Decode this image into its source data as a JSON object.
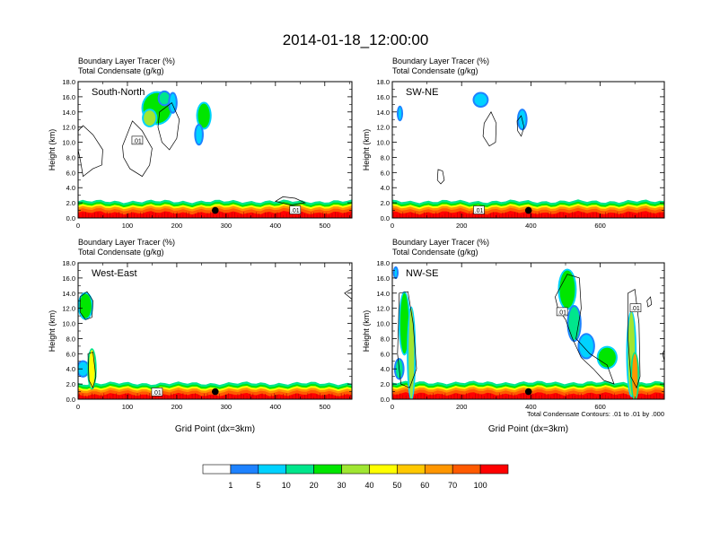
{
  "page_title": "2014-01-18_12:00:00",
  "footer_note": "Total Condensate Contours: .01 to .01 by .000",
  "colors": {
    "scale": [
      "#ffffff",
      "#1e82ff",
      "#00d2ff",
      "#00e68c",
      "#00e600",
      "#a0e632",
      "#ffff00",
      "#ffc800",
      "#ff9600",
      "#ff5a00",
      "#ff0000"
    ],
    "contour": "#000000",
    "ground": "#ff2800"
  },
  "chart_data": [
    {
      "type": "heatmap",
      "title_lines": [
        "Boundary Layer Tracer   (%)",
        "Total Condensate   (g/kg)"
      ],
      "panel_label": "South-North",
      "ylabel": "Height (km)",
      "xlabel": "",
      "xlim": [
        0,
        555
      ],
      "ylim": [
        0,
        18
      ],
      "xticks": [
        0,
        100,
        200,
        300,
        400,
        500
      ],
      "xtick_labels": [
        "0",
        "100",
        "200",
        "300",
        "400",
        "500"
      ],
      "yticks": [
        0,
        2,
        4,
        6,
        8,
        10,
        12,
        14,
        16,
        18
      ],
      "ytick_labels": [
        "0.0",
        "2.0",
        "4.0",
        "6.0",
        "8.0",
        "10.0",
        "12.0",
        "14.0",
        "16.0",
        "18.0"
      ],
      "marker": {
        "x": 278,
        "y": 1.0
      },
      "contour_labels": [
        {
          "text": ".01",
          "x": 120,
          "y": 10.2
        },
        {
          "text": ".01",
          "x": 440,
          "y": 1.0
        }
      ],
      "tracer_blobs": [
        {
          "x": 160,
          "y": 14.5,
          "rx": 28,
          "ry": 2.0,
          "v": 20
        },
        {
          "x": 145,
          "y": 13.2,
          "rx": 12,
          "ry": 1.0,
          "v": 30
        },
        {
          "x": 175,
          "y": 15.8,
          "rx": 10,
          "ry": 0.8,
          "v": 10
        },
        {
          "x": 255,
          "y": 13.5,
          "rx": 12,
          "ry": 1.6,
          "v": 20
        },
        {
          "x": 245,
          "y": 11.0,
          "rx": 6,
          "ry": 1.2,
          "v": 5
        },
        {
          "x": 192,
          "y": 15.2,
          "rx": 6,
          "ry": 1.2,
          "v": 5
        }
      ],
      "contours": [
        [
          [
            0,
            11.5
          ],
          [
            10,
            12.2
          ],
          [
            30,
            11.0
          ],
          [
            50,
            9.0
          ],
          [
            48,
            7.0
          ],
          [
            30,
            6.5
          ],
          [
            10,
            5.5
          ],
          [
            5,
            7.5
          ],
          [
            0,
            9.0
          ]
        ],
        [
          [
            90,
            9.5
          ],
          [
            110,
            12.8
          ],
          [
            130,
            11.5
          ],
          [
            150,
            9.2
          ],
          [
            145,
            7.0
          ],
          [
            130,
            5.5
          ],
          [
            105,
            6.5
          ],
          [
            92,
            8.0
          ]
        ],
        [
          [
            165,
            14.0
          ],
          [
            190,
            15.2
          ],
          [
            205,
            13.0
          ],
          [
            200,
            10.5
          ],
          [
            185,
            9.0
          ],
          [
            170,
            10.0
          ],
          [
            162,
            12.0
          ]
        ],
        [
          [
            400,
            2.2
          ],
          [
            415,
            2.8
          ],
          [
            440,
            2.6
          ],
          [
            460,
            2.0
          ],
          [
            430,
            1.7
          ]
        ]
      ],
      "pbl_height_km": 1.3
    },
    {
      "type": "heatmap",
      "title_lines": [
        "Boundary Layer Tracer   (%)",
        "Total Condensate   (g/kg)"
      ],
      "panel_label": "SW-NE",
      "ylabel": "Height (km)",
      "xlabel": "",
      "xlim": [
        0,
        785
      ],
      "ylim": [
        0,
        18
      ],
      "xticks": [
        0,
        200,
        400,
        600
      ],
      "xtick_labels": [
        "0",
        "200",
        "400",
        "600"
      ],
      "yticks": [
        0,
        2,
        4,
        6,
        8,
        10,
        12,
        14,
        16,
        18
      ],
      "ytick_labels": [
        "0.0",
        "2.0",
        "4.0",
        "6.0",
        "8.0",
        "10.0",
        "12.0",
        "14.0",
        "16.0",
        "18.0"
      ],
      "marker": {
        "x": 393,
        "y": 1.0
      },
      "contour_labels": [
        {
          "text": ".01",
          "x": 250,
          "y": 1.0
        }
      ],
      "tracer_blobs": [
        {
          "x": 255,
          "y": 15.6,
          "rx": 18,
          "ry": 0.8,
          "v": 5
        },
        {
          "x": 375,
          "y": 13.0,
          "rx": 10,
          "ry": 1.2,
          "v": 5
        },
        {
          "x": 22,
          "y": 13.8,
          "rx": 4,
          "ry": 0.8,
          "v": 5
        }
      ],
      "contours": [
        [
          [
            265,
            12.5
          ],
          [
            285,
            14.0
          ],
          [
            300,
            12.5
          ],
          [
            298,
            10.0
          ],
          [
            280,
            9.5
          ],
          [
            262,
            10.8
          ]
        ],
        [
          [
            132,
            6.4
          ],
          [
            145,
            6.2
          ],
          [
            150,
            5.0
          ],
          [
            140,
            4.5
          ],
          [
            130,
            5.0
          ]
        ],
        [
          [
            360,
            12.8
          ],
          [
            372,
            13.5
          ],
          [
            380,
            12.0
          ],
          [
            372,
            10.8
          ],
          [
            362,
            11.5
          ]
        ]
      ],
      "pbl_height_km": 1.3
    },
    {
      "type": "heatmap",
      "title_lines": [
        "Boundary Layer Tracer   (%)",
        "Total Condensate   (g/kg)"
      ],
      "panel_label": "West-East",
      "ylabel": "Height (km)",
      "xlabel": "Grid Point (dx=3km)",
      "xlim": [
        0,
        555
      ],
      "ylim": [
        0,
        18
      ],
      "xticks": [
        0,
        100,
        200,
        300,
        400,
        500
      ],
      "xtick_labels": [
        "0",
        "100",
        "200",
        "300",
        "400",
        "500"
      ],
      "yticks": [
        0,
        2,
        4,
        6,
        8,
        10,
        12,
        14,
        16,
        18
      ],
      "ytick_labels": [
        "0.0",
        "2.0",
        "4.0",
        "6.0",
        "8.0",
        "10.0",
        "12.0",
        "14.0",
        "16.0",
        "18.0"
      ],
      "marker": {
        "x": 278,
        "y": 1.0
      },
      "contour_labels": [
        {
          "text": ".01",
          "x": 160,
          "y": 0.9
        }
      ],
      "tracer_blobs": [
        {
          "x": 15,
          "y": 12.3,
          "rx": 12,
          "ry": 1.6,
          "v": 20
        },
        {
          "x": 10,
          "y": 4.0,
          "rx": 10,
          "ry": 0.9,
          "v": 5
        },
        {
          "x": 28,
          "y": 4.0,
          "rx": 6,
          "ry": 2.5,
          "v": 40
        }
      ],
      "contours": [
        [
          [
            4,
            13.5
          ],
          [
            18,
            14.2
          ],
          [
            30,
            13.0
          ],
          [
            28,
            10.8
          ],
          [
            15,
            10.5
          ],
          [
            4,
            11.5
          ]
        ],
        [
          [
            20,
            6.0
          ],
          [
            30,
            6.2
          ],
          [
            36,
            3.0
          ],
          [
            30,
            1.5
          ],
          [
            22,
            2.5
          ]
        ],
        [
          [
            540,
            14.0
          ],
          [
            555,
            14.6
          ],
          [
            555,
            13.2
          ]
        ]
      ],
      "pbl_height_km": 1.2
    },
    {
      "type": "heatmap",
      "title_lines": [
        "Boundary Layer Tracer   (%)",
        "Total Condensate   (g/kg)"
      ],
      "panel_label": "NW-SE",
      "ylabel": "Height (km)",
      "xlabel": "Grid Point (dx=3km)",
      "xlim": [
        0,
        785
      ],
      "ylim": [
        0,
        18
      ],
      "xticks": [
        0,
        200,
        400,
        600
      ],
      "xtick_labels": [
        "0",
        "200",
        "400",
        "600"
      ],
      "yticks": [
        0,
        2,
        4,
        6,
        8,
        10,
        12,
        14,
        16,
        18
      ],
      "ytick_labels": [
        "0.0",
        "2.0",
        "4.0",
        "6.0",
        "8.0",
        "10.0",
        "12.0",
        "14.0",
        "16.0",
        "18.0"
      ],
      "marker": {
        "x": 393,
        "y": 1.0
      },
      "contour_labels": [
        {
          "text": ".01",
          "x": 490,
          "y": 11.5
        },
        {
          "text": ".01",
          "x": 702,
          "y": 12.0
        }
      ],
      "tracer_blobs": [
        {
          "x": 35,
          "y": 10.0,
          "rx": 12,
          "ry": 4.0,
          "v": 20
        },
        {
          "x": 55,
          "y": 6.0,
          "rx": 8,
          "ry": 6.0,
          "v": 30
        },
        {
          "x": 20,
          "y": 4.0,
          "rx": 10,
          "ry": 1.2,
          "v": 10
        },
        {
          "x": 505,
          "y": 14.5,
          "rx": 22,
          "ry": 2.5,
          "v": 20
        },
        {
          "x": 525,
          "y": 10.0,
          "rx": 16,
          "ry": 2.2,
          "v": 10
        },
        {
          "x": 560,
          "y": 7.0,
          "rx": 20,
          "ry": 1.5,
          "v": 5
        },
        {
          "x": 620,
          "y": 5.5,
          "rx": 25,
          "ry": 1.3,
          "v": 20
        },
        {
          "x": 690,
          "y": 6.0,
          "rx": 10,
          "ry": 5.5,
          "v": 30
        },
        {
          "x": 700,
          "y": 3.0,
          "rx": 8,
          "ry": 3.0,
          "v": 60
        },
        {
          "x": 10,
          "y": 16.7,
          "rx": 3,
          "ry": 0.6,
          "v": 5
        }
      ],
      "contours": [
        [
          [
            20,
            14.0
          ],
          [
            45,
            14.2
          ],
          [
            60,
            10.0
          ],
          [
            70,
            4.0
          ],
          [
            50,
            1.5
          ],
          [
            25,
            2.0
          ],
          [
            15,
            6.0
          ],
          [
            18,
            10.0
          ]
        ],
        [
          [
            470,
            13.5
          ],
          [
            505,
            16.5
          ],
          [
            540,
            16.0
          ],
          [
            545,
            12.0
          ],
          [
            530,
            8.0
          ],
          [
            570,
            6.0
          ],
          [
            620,
            4.5
          ],
          [
            640,
            2.0
          ],
          [
            610,
            2.5
          ],
          [
            580,
            4.0
          ],
          [
            545,
            5.5
          ],
          [
            520,
            8.0
          ],
          [
            500,
            10.5
          ],
          [
            478,
            12.0
          ]
        ],
        [
          [
            680,
            14.0
          ],
          [
            700,
            14.5
          ],
          [
            712,
            10.0
          ],
          [
            715,
            3.0
          ],
          [
            705,
            1.5
          ],
          [
            688,
            3.0
          ],
          [
            680,
            8.0
          ]
        ],
        [
          [
            735,
            13.0
          ],
          [
            745,
            13.5
          ],
          [
            748,
            12.5
          ],
          [
            738,
            12.2
          ]
        ],
        [
          [
            780,
            6.0
          ],
          [
            785,
            6.5
          ],
          [
            785,
            5.0
          ]
        ]
      ],
      "pbl_height_km": 1.3
    }
  ],
  "colorbar": {
    "labels": [
      "1",
      "5",
      "10",
      "20",
      "30",
      "40",
      "50",
      "60",
      "70",
      "100"
    ]
  }
}
